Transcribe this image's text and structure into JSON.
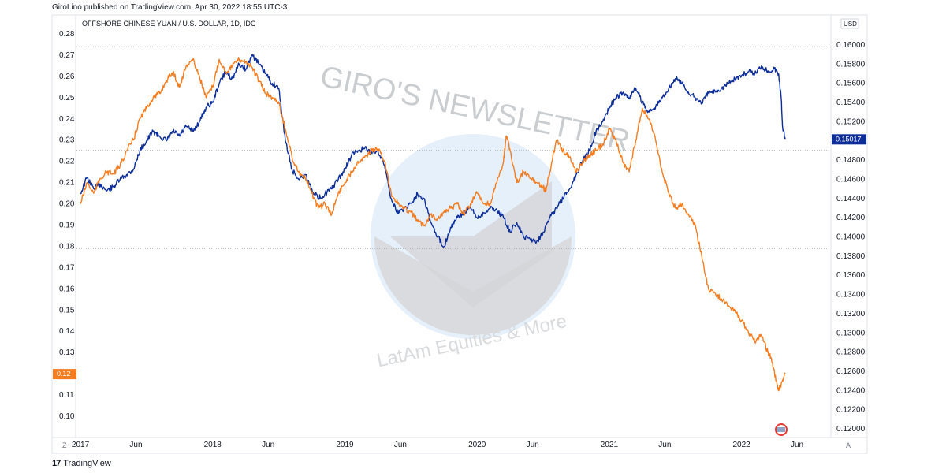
{
  "header": {
    "published": "GiroLino published on TradingView.com, Apr 30, 2022 18:55 UTC-3"
  },
  "footer": {
    "brand": "TradingView",
    "logo_glyph": "17"
  },
  "watermark": {
    "title": "GIRO'S NEWSLETTER",
    "subtitle": "LatAm Equities & More"
  },
  "axis_controls": {
    "left": "Z",
    "right": "A",
    "currency": "USD"
  },
  "colors": {
    "blue": "#0d2e99",
    "orange": "#f57c1f",
    "grid": "#9e9e9e"
  },
  "chart_data": {
    "type": "line",
    "title": "OFFSHORE CHINESE YUAN / U.S. DOLLAR, 1D, IDC",
    "x_ticks": [
      "2017",
      "Jun",
      "2018",
      "Jun",
      "2019",
      "Jun",
      "2020",
      "Jun",
      "2021",
      "Jun",
      "2022",
      "Jun"
    ],
    "x_tick_dates": [
      2017.0,
      2017.42,
      2018.0,
      2018.42,
      2019.0,
      2019.42,
      2020.0,
      2020.42,
      2021.0,
      2021.42,
      2022.0,
      2022.42
    ],
    "xlim": [
      2016.97,
      2022.67
    ],
    "left_axis": {
      "ylim": [
        0.095,
        0.285
      ],
      "ticks": [
        "0.28",
        "0.27",
        "0.26",
        "0.25",
        "0.24",
        "0.23",
        "0.22",
        "0.21",
        "0.20",
        "0.19",
        "0.18",
        "0.17",
        "0.16",
        "0.15",
        "0.14",
        "0.13",
        "0.12",
        "0.11",
        "0.10"
      ],
      "last_value_label": "0.12"
    },
    "right_axis": {
      "ylim": [
        0.1192,
        0.1616
      ],
      "ticks": [
        "0.16000",
        "0.15800",
        "0.15600",
        "0.15400",
        "0.15200",
        "0.15000",
        "0.14800",
        "0.14600",
        "0.14400",
        "0.14200",
        "0.14000",
        "0.13800",
        "0.13600",
        "0.13400",
        "0.13200",
        "0.13000",
        "0.12800",
        "0.12600",
        "0.12400",
        "0.12200",
        "0.12000"
      ],
      "last_value_label": "0.15017"
    },
    "series": [
      {
        "color": "#0d2e99",
        "axis": "right",
        "x": [
          2017.0,
          2017.05,
          2017.1,
          2017.15,
          2017.2,
          2017.25,
          2017.3,
          2017.35,
          2017.4,
          2017.45,
          2017.5,
          2017.55,
          2017.6,
          2017.65,
          2017.7,
          2017.75,
          2017.8,
          2017.85,
          2017.9,
          2017.95,
          2018.0,
          2018.05,
          2018.1,
          2018.15,
          2018.2,
          2018.25,
          2018.3,
          2018.35,
          2018.4,
          2018.45,
          2018.5,
          2018.55,
          2018.6,
          2018.65,
          2018.7,
          2018.75,
          2018.8,
          2018.85,
          2018.9,
          2018.95,
          2019.0,
          2019.05,
          2019.1,
          2019.15,
          2019.2,
          2019.25,
          2019.3,
          2019.35,
          2019.4,
          2019.45,
          2019.5,
          2019.55,
          2019.6,
          2019.65,
          2019.7,
          2019.75,
          2019.8,
          2019.85,
          2019.9,
          2019.95,
          2020.0,
          2020.05,
          2020.1,
          2020.15,
          2020.2,
          2020.25,
          2020.3,
          2020.35,
          2020.4,
          2020.45,
          2020.5,
          2020.55,
          2020.6,
          2020.65,
          2020.7,
          2020.75,
          2020.8,
          2020.85,
          2020.9,
          2020.95,
          2021.0,
          2021.05,
          2021.1,
          2021.15,
          2021.2,
          2021.25,
          2021.3,
          2021.35,
          2021.4,
          2021.45,
          2021.5,
          2021.55,
          2021.6,
          2021.65,
          2021.7,
          2021.75,
          2021.8,
          2021.85,
          2021.9,
          2021.95,
          2022.0,
          2022.05,
          2022.1,
          2022.15,
          2022.2,
          2022.25,
          2022.28,
          2022.3,
          2022.31,
          2022.33
        ],
        "y": [
          0.1445,
          0.1462,
          0.145,
          0.1455,
          0.1448,
          0.1452,
          0.146,
          0.1465,
          0.147,
          0.149,
          0.15,
          0.151,
          0.1505,
          0.15,
          0.151,
          0.1505,
          0.1515,
          0.151,
          0.152,
          0.1535,
          0.154,
          0.156,
          0.1572,
          0.1565,
          0.158,
          0.1575,
          0.159,
          0.158,
          0.157,
          0.156,
          0.1555,
          0.15,
          0.147,
          0.146,
          0.1465,
          0.145,
          0.144,
          0.1445,
          0.145,
          0.146,
          0.147,
          0.1485,
          0.149,
          0.1492,
          0.1488,
          0.149,
          0.1475,
          0.144,
          0.1425,
          0.143,
          0.1435,
          0.1445,
          0.144,
          0.1415,
          0.14,
          0.139,
          0.141,
          0.142,
          0.1425,
          0.143,
          0.142,
          0.1425,
          0.143,
          0.1428,
          0.142,
          0.1405,
          0.1415,
          0.14,
          0.1398,
          0.1395,
          0.1405,
          0.142,
          0.143,
          0.144,
          0.145,
          0.1465,
          0.148,
          0.149,
          0.151,
          0.152,
          0.1535,
          0.1545,
          0.155,
          0.1545,
          0.1555,
          0.154,
          0.153,
          0.1535,
          0.1545,
          0.1555,
          0.1565,
          0.156,
          0.155,
          0.1545,
          0.154,
          0.155,
          0.1552,
          0.1555,
          0.156,
          0.1565,
          0.1568,
          0.1572,
          0.157,
          0.1578,
          0.1573,
          0.1575,
          0.157,
          0.1545,
          0.1515,
          0.1502
        ]
      },
      {
        "color": "#f57c1f",
        "axis": "left",
        "x": [
          2017.0,
          2017.05,
          2017.1,
          2017.15,
          2017.2,
          2017.25,
          2017.3,
          2017.35,
          2017.4,
          2017.45,
          2017.5,
          2017.55,
          2017.6,
          2017.65,
          2017.7,
          2017.75,
          2017.8,
          2017.85,
          2017.9,
          2017.95,
          2018.0,
          2018.05,
          2018.1,
          2018.15,
          2018.2,
          2018.25,
          2018.3,
          2018.35,
          2018.4,
          2018.45,
          2018.5,
          2018.55,
          2018.6,
          2018.65,
          2018.7,
          2018.75,
          2018.8,
          2018.85,
          2018.9,
          2018.95,
          2019.0,
          2019.05,
          2019.1,
          2019.15,
          2019.2,
          2019.25,
          2019.3,
          2019.35,
          2019.4,
          2019.45,
          2019.5,
          2019.55,
          2019.6,
          2019.65,
          2019.7,
          2019.75,
          2019.8,
          2019.85,
          2019.9,
          2019.95,
          2020.0,
          2020.05,
          2020.1,
          2020.15,
          2020.2,
          2020.22,
          2020.25,
          2020.3,
          2020.35,
          2020.4,
          2020.45,
          2020.5,
          2020.52,
          2020.55,
          2020.6,
          2020.65,
          2020.7,
          2020.75,
          2020.8,
          2020.85,
          2020.9,
          2020.95,
          2021.0,
          2021.05,
          2021.1,
          2021.15,
          2021.2,
          2021.25,
          2021.3,
          2021.35,
          2021.4,
          2021.45,
          2021.5,
          2021.55,
          2021.6,
          2021.65,
          2021.7,
          2021.75,
          2021.8,
          2021.85,
          2021.9,
          2021.95,
          2022.0,
          2022.05,
          2022.1,
          2022.15,
          2022.2,
          2022.22,
          2022.25,
          2022.28,
          2022.3,
          2022.33
        ],
        "y": [
          0.2,
          0.21,
          0.205,
          0.212,
          0.215,
          0.214,
          0.218,
          0.225,
          0.23,
          0.24,
          0.245,
          0.25,
          0.252,
          0.258,
          0.262,
          0.255,
          0.265,
          0.268,
          0.26,
          0.25,
          0.255,
          0.268,
          0.262,
          0.265,
          0.268,
          0.267,
          0.264,
          0.258,
          0.252,
          0.25,
          0.248,
          0.235,
          0.222,
          0.215,
          0.212,
          0.205,
          0.198,
          0.2,
          0.195,
          0.205,
          0.21,
          0.215,
          0.22,
          0.222,
          0.225,
          0.226,
          0.22,
          0.205,
          0.2,
          0.198,
          0.196,
          0.192,
          0.19,
          0.195,
          0.193,
          0.196,
          0.198,
          0.2,
          0.195,
          0.2,
          0.205,
          0.2,
          0.2,
          0.21,
          0.22,
          0.232,
          0.225,
          0.21,
          0.215,
          0.212,
          0.21,
          0.208,
          0.206,
          0.215,
          0.23,
          0.225,
          0.222,
          0.215,
          0.22,
          0.223,
          0.225,
          0.228,
          0.235,
          0.23,
          0.22,
          0.215,
          0.23,
          0.245,
          0.24,
          0.23,
          0.215,
          0.205,
          0.198,
          0.2,
          0.195,
          0.19,
          0.175,
          0.16,
          0.158,
          0.155,
          0.152,
          0.15,
          0.145,
          0.14,
          0.135,
          0.138,
          0.13,
          0.128,
          0.12,
          0.112,
          0.115,
          0.12
        ]
      }
    ],
    "horizontal_lines_right": [
      0.1598,
      0.149,
      0.1388
    ],
    "grid": false
  }
}
